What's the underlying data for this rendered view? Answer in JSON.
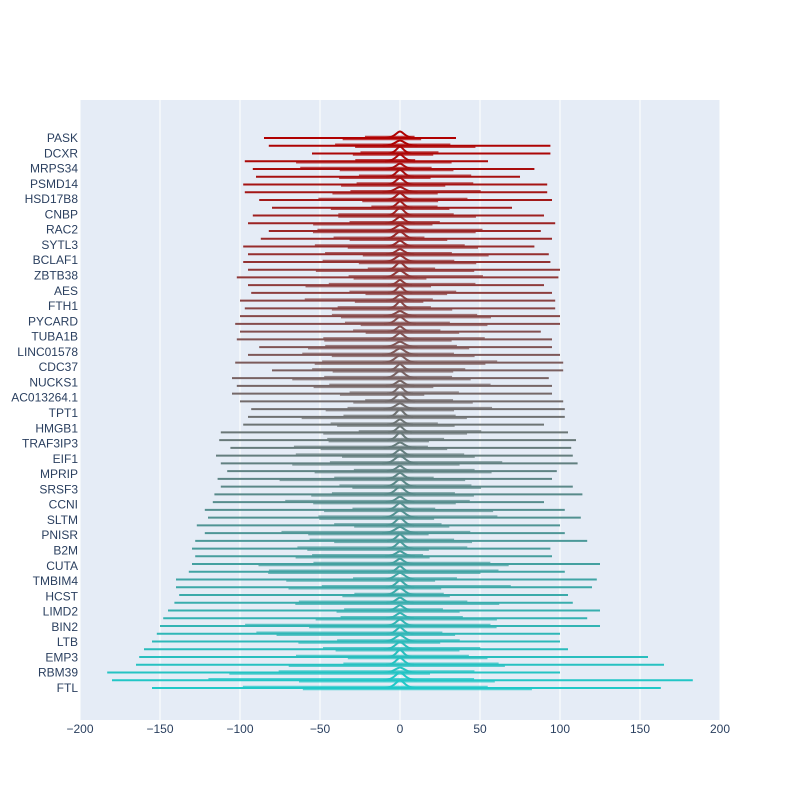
{
  "chart_data": {
    "type": "line",
    "title": "",
    "xlabel": "",
    "ylabel": "",
    "xlim": [
      -200,
      200
    ],
    "grid": true,
    "legend": "none",
    "x_ticks": [
      -200,
      -150,
      -100,
      -50,
      0,
      50,
      100,
      150,
      200
    ],
    "x_tick_labels": [
      "−200",
      "−150",
      "−100",
      "−50",
      "0",
      "50",
      "100",
      "150",
      "200"
    ],
    "y_tick_labels": [
      "PASK",
      "DCXR",
      "MRPS34",
      "PSMD14",
      "HSD17B8",
      "CNBP",
      "RAC2",
      "SYTL3",
      "BCLAF1",
      "ZBTB38",
      "AES",
      "FTH1",
      "PYCARD",
      "TUBA1B",
      "LINC01578",
      "CDC37",
      "NUCKS1",
      "AC013264.1",
      "TPT1",
      "HMGB1",
      "TRAF3IP3",
      "EIF1",
      "MPRIP",
      "SRSF3",
      "CCNI",
      "SLTM",
      "PNISR",
      "B2M",
      "CUTA",
      "TMBIM4",
      "HCST",
      "LIMD2",
      "BIN2",
      "LTB",
      "EMP3",
      "RBM39",
      "FTL"
    ],
    "colors": {
      "top": "#b00000",
      "middle": "#707070",
      "bottom": "#20c8c8",
      "plot_bg": "#e5ecf6",
      "grid": "#ffffff",
      "text": "#2a3f5f"
    },
    "series_count": 72,
    "series_range": {
      "min": [
        -85,
        -82,
        -55,
        -97,
        -92,
        -90,
        -98,
        -97,
        -88,
        -80,
        -92,
        -95,
        -82,
        -87,
        -98,
        -95,
        -98,
        -95,
        -102,
        -95,
        -93,
        -100,
        -97,
        -100,
        -103,
        -100,
        -102,
        -88,
        -95,
        -103,
        -80,
        -105,
        -102,
        -105,
        -100,
        -93,
        -95,
        -98,
        -112,
        -113,
        -106,
        -115,
        -112,
        -108,
        -114,
        -112,
        -116,
        -117,
        -122,
        -120,
        -127,
        -122,
        -128,
        -130,
        -128,
        -130,
        -132,
        -140,
        -140,
        -138,
        -141,
        -145,
        -148,
        -150,
        -152,
        -155,
        -160,
        -163,
        -165,
        -183,
        -180,
        -155
      ],
      "max": [
        35,
        94,
        94,
        55,
        84,
        75,
        92,
        92,
        95,
        70,
        90,
        97,
        88,
        95,
        84,
        93,
        94,
        100,
        99,
        90,
        95,
        97,
        97,
        100,
        100,
        88,
        95,
        95,
        100,
        102,
        102,
        93,
        95,
        95,
        102,
        103,
        103,
        90,
        105,
        110,
        107,
        108,
        111,
        98,
        95,
        108,
        114,
        90,
        103,
        113,
        100,
        103,
        117,
        94,
        95,
        125,
        103,
        123,
        120,
        105,
        108,
        125,
        117,
        125,
        100,
        100,
        105,
        155,
        165,
        100,
        183,
        163
      ]
    }
  }
}
